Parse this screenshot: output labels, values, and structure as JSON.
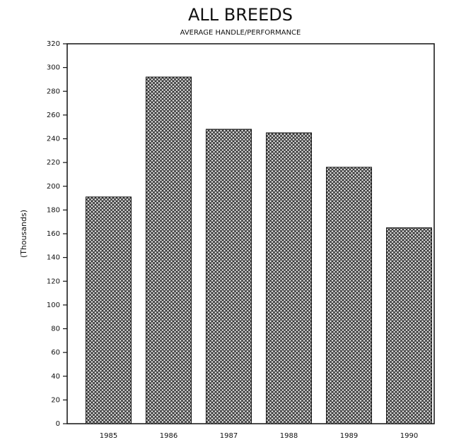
{
  "chart_data": {
    "type": "bar",
    "title": "ALL BREEDS",
    "subtitle": "AVERAGE HANDLE/PERFORMANCE",
    "y_label": "(Thousands)",
    "categories": [
      "1985",
      "1986",
      "1987",
      "1988",
      "1989",
      "1990"
    ],
    "values": [
      191,
      292,
      248,
      245,
      216,
      165
    ],
    "color": "#333333",
    "ylim": [
      0,
      320
    ],
    "yticks": [
      0,
      20,
      40,
      60,
      80,
      100,
      120,
      140,
      160,
      180,
      200,
      220,
      240,
      260,
      280,
      300,
      320
    ]
  }
}
